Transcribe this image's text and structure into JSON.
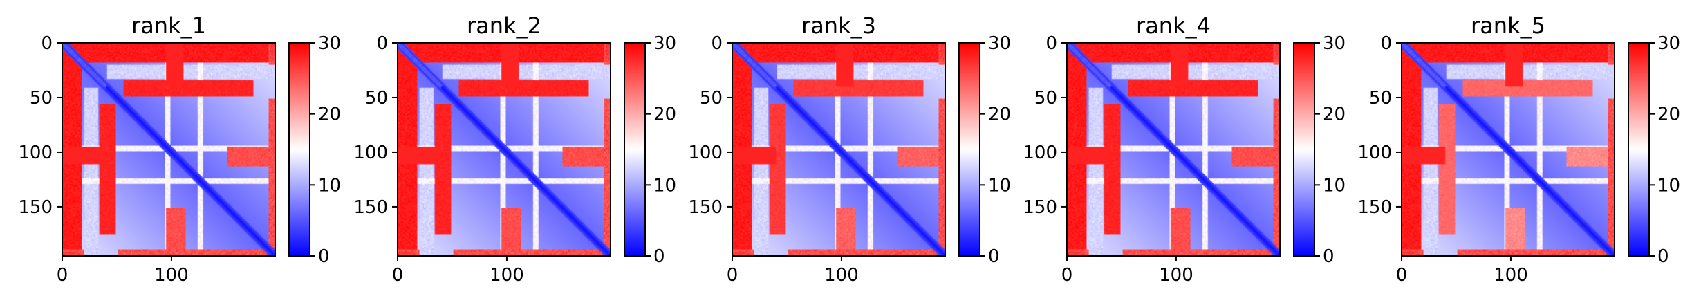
{
  "chart_data": [
    {
      "type": "heatmap",
      "title": "rank_1",
      "x_ticks": [
        "0",
        "100"
      ],
      "y_ticks": [
        "0",
        "50",
        "100",
        "150"
      ],
      "xlim": [
        0,
        195
      ],
      "ylim": [
        195,
        0
      ],
      "colorbar": {
        "ticks": [
          "0",
          "10",
          "20",
          "30"
        ],
        "range": [
          0,
          30
        ],
        "colormap": [
          "#0000ff",
          "#ffffff",
          "#ff0000"
        ]
      },
      "matrix_size": 195,
      "features": {
        "band_strength": 1.0
      }
    },
    {
      "type": "heatmap",
      "title": "rank_2",
      "x_ticks": [
        "0",
        "100"
      ],
      "y_ticks": [
        "0",
        "50",
        "100",
        "150"
      ],
      "xlim": [
        0,
        195
      ],
      "ylim": [
        195,
        0
      ],
      "colorbar": {
        "ticks": [
          "0",
          "10",
          "20",
          "30"
        ],
        "range": [
          0,
          30
        ],
        "colormap": [
          "#0000ff",
          "#ffffff",
          "#ff0000"
        ]
      },
      "matrix_size": 195,
      "features": {
        "band_strength": 1.0
      }
    },
    {
      "type": "heatmap",
      "title": "rank_3",
      "x_ticks": [
        "0",
        "100"
      ],
      "y_ticks": [
        "0",
        "50",
        "100",
        "150"
      ],
      "xlim": [
        0,
        195
      ],
      "ylim": [
        195,
        0
      ],
      "colorbar": {
        "ticks": [
          "0",
          "10",
          "20",
          "30"
        ],
        "range": [
          0,
          30
        ],
        "colormap": [
          "#0000ff",
          "#ffffff",
          "#ff0000"
        ]
      },
      "matrix_size": 195,
      "features": {
        "band_strength": 0.95
      }
    },
    {
      "type": "heatmap",
      "title": "rank_4",
      "x_ticks": [
        "0",
        "100"
      ],
      "y_ticks": [
        "0",
        "50",
        "100",
        "150"
      ],
      "xlim": [
        0,
        195
      ],
      "ylim": [
        195,
        0
      ],
      "colorbar": {
        "ticks": [
          "0",
          "10",
          "20",
          "30"
        ],
        "range": [
          0,
          30
        ],
        "colormap": [
          "#0000ff",
          "#ffffff",
          "#ff0000"
        ]
      },
      "matrix_size": 195,
      "features": {
        "band_strength": 1.0
      }
    },
    {
      "type": "heatmap",
      "title": "rank_5",
      "x_ticks": [
        "0",
        "100"
      ],
      "y_ticks": [
        "0",
        "50",
        "100",
        "150"
      ],
      "xlim": [
        0,
        195
      ],
      "ylim": [
        195,
        0
      ],
      "colorbar": {
        "ticks": [
          "0",
          "10",
          "20",
          "30"
        ],
        "range": [
          0,
          30
        ],
        "colormap": [
          "#0000ff",
          "#ffffff",
          "#ff0000"
        ]
      },
      "matrix_size": 195,
      "features": {
        "band_strength": 0.85
      }
    }
  ]
}
